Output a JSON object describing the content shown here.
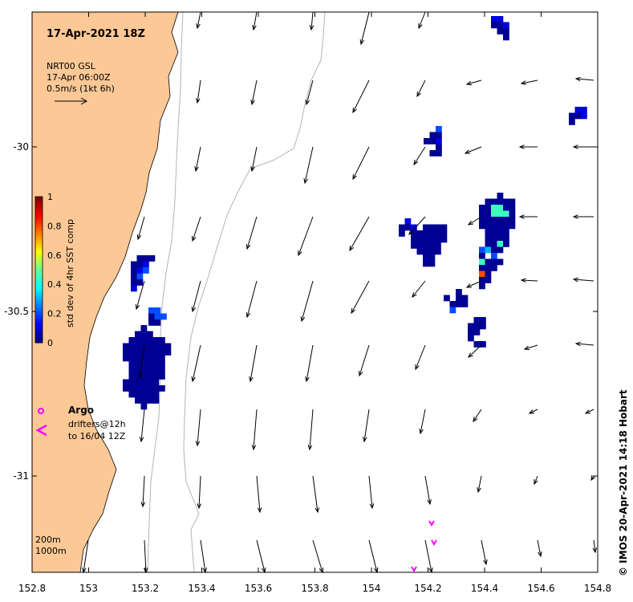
{
  "map": {
    "title": "17-Apr-2021 18Z",
    "product": "NRT00 GSL",
    "product_time": "17-Apr 06:00Z",
    "vector_scale": "0.5m/s (1kt 6h)",
    "lon_ticks": [
      "152.8",
      "153",
      "153.2",
      "153.4",
      "153.6",
      "153.8",
      "154",
      "154.2",
      "154.4",
      "154.6",
      "154.8"
    ],
    "lat_ticks": [
      "-30",
      "-30.5",
      "-31"
    ],
    "colorbar": {
      "label": "std dev of 4hr SST comp",
      "ticks": [
        "1",
        "0.8",
        "0.6",
        "0.4",
        "0.2",
        "0"
      ],
      "range": [
        0,
        1
      ]
    },
    "argo_label": "Argo",
    "drifter_label_1": "drifters@12h",
    "drifter_label_2": "to 16/04 12Z",
    "bathy_label_1": "200m",
    "bathy_label_2": "1000m",
    "credit": "© IMOS 20-Apr-2021 14:18 Hobart",
    "colors": {
      "land": "#fbc896",
      "sea": "#ffffff",
      "argo": "#ff00ff",
      "drifter": "#ff00ff",
      "bathymetry": "#b4b4b4",
      "sst_low": "#00007f",
      "sst_high": "#7f0000"
    }
  }
}
